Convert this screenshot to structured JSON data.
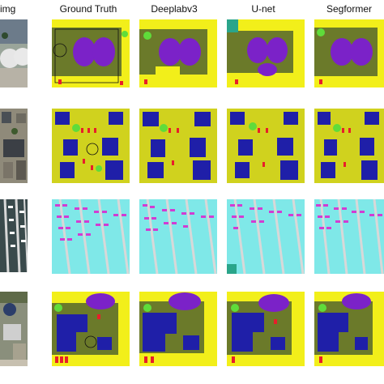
{
  "headers": {
    "img": "img",
    "ground_truth": "Ground Truth",
    "deeplabv3": "Deeplabv3",
    "unet": "U-net",
    "segformer": "Segformer"
  },
  "colors": {
    "background_olive": "#6b7a2a",
    "low_vegetation_yellow": "#f2ef1a",
    "building_blue": "#1f1fa8",
    "pool_purple": "#7b22c8",
    "tree_green": "#5fdc3a",
    "water_cyan": "#7fe8e8",
    "car_red": "#e81e2a",
    "boat_magenta": "#d23cd2",
    "road_gray": "#d8d8d8",
    "teal": "#2aa58a"
  }
}
